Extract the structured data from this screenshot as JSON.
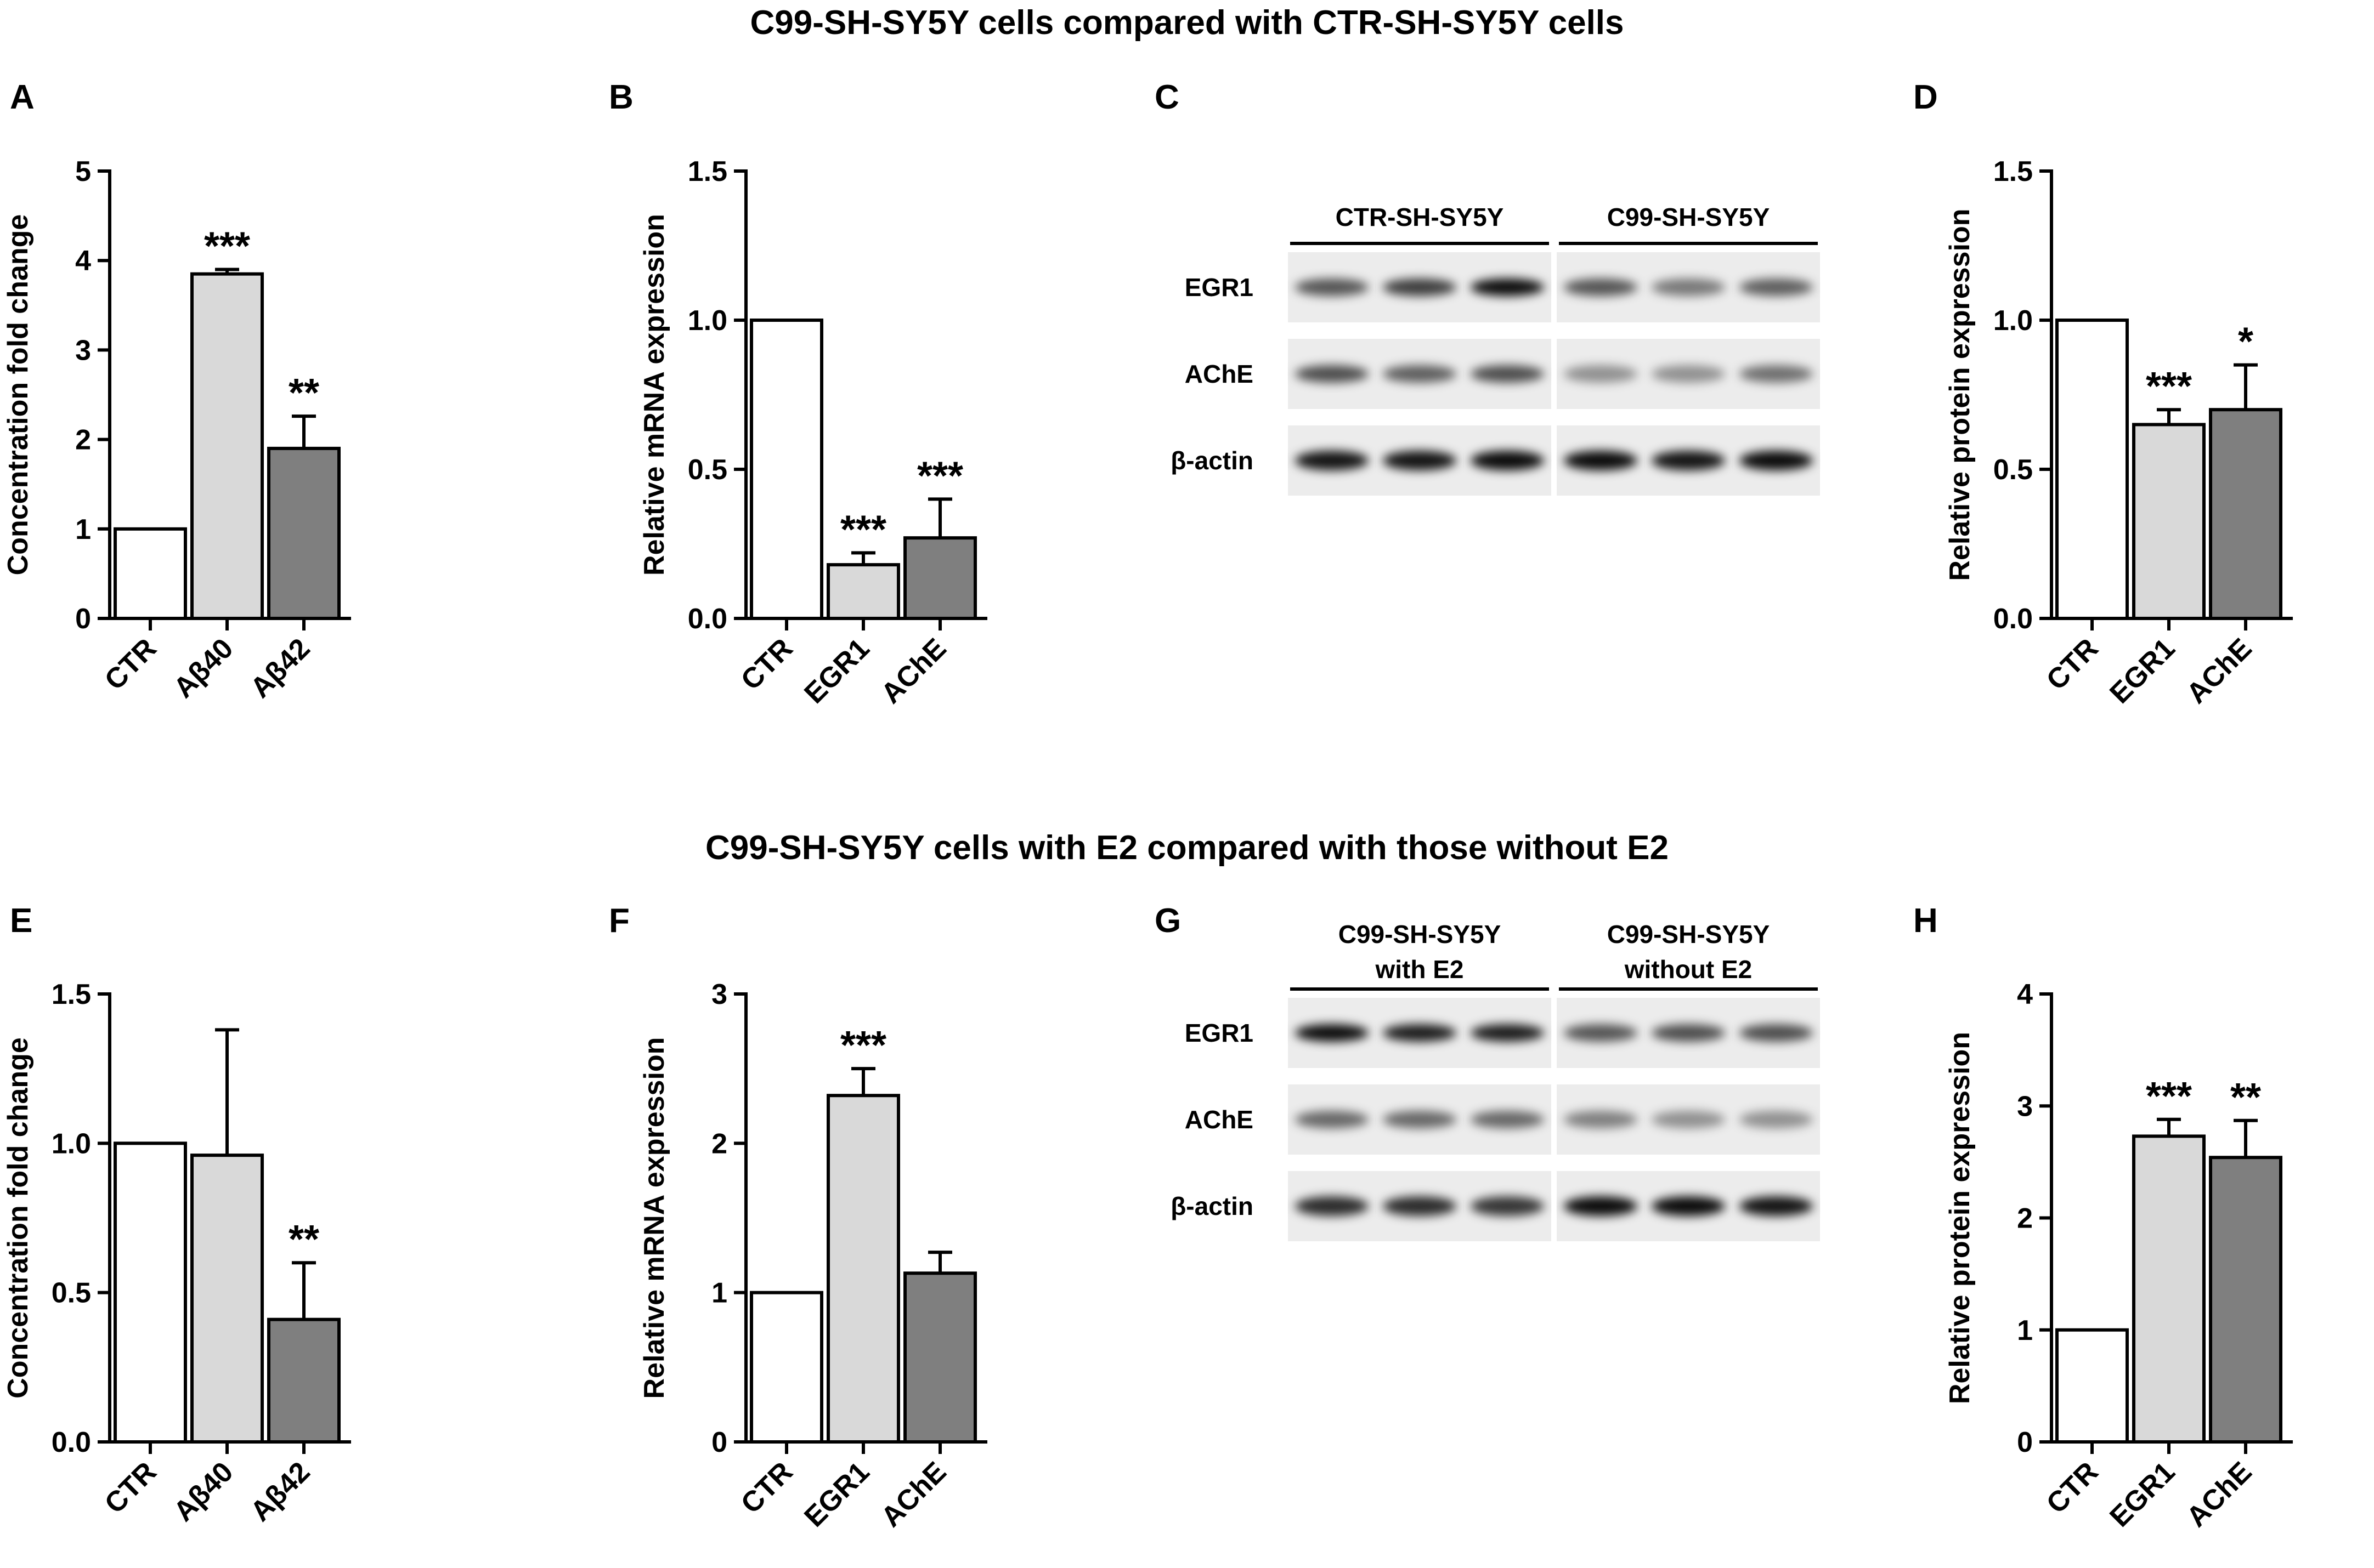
{
  "headings": {
    "top": "C99-SH-SY5Y cells compared with CTR-SH-SY5Y cells",
    "bottom": "C99-SH-SY5Y cells with E2 compared with those without E2"
  },
  "colors": {
    "white_bar": "#ffffff",
    "light_bar": "#d9d9d9",
    "dark_bar": "#7f7f7f",
    "axis": "#000000"
  },
  "chart_data": [
    {
      "panel": "A",
      "type": "bar",
      "categories": [
        "CTR",
        "Aβ40",
        "Aβ42"
      ],
      "values": [
        1.0,
        3.85,
        1.9
      ],
      "errors": [
        0,
        0.05,
        0.36
      ],
      "significance": [
        "",
        "***",
        "**"
      ],
      "ylabel": "Concentration fold change",
      "ylim": [
        0,
        5
      ],
      "yticks": [
        "0",
        "1",
        "2",
        "3",
        "4",
        "5"
      ]
    },
    {
      "panel": "B",
      "type": "bar",
      "categories": [
        "CTR",
        "EGR1",
        "AChE"
      ],
      "values": [
        1.0,
        0.18,
        0.27
      ],
      "errors": [
        0,
        0.04,
        0.13
      ],
      "significance": [
        "",
        "***",
        "***"
      ],
      "ylabel": "Relative mRNA expression",
      "ylim": [
        0,
        1.5
      ],
      "yticks": [
        "0.0",
        "0.5",
        "1.0",
        "1.5"
      ]
    },
    {
      "panel": "D",
      "type": "bar",
      "categories": [
        "CTR",
        "EGR1",
        "AChE"
      ],
      "values": [
        1.0,
        0.65,
        0.7
      ],
      "errors": [
        0,
        0.05,
        0.15
      ],
      "significance": [
        "",
        "***",
        "*"
      ],
      "ylabel": "Relative protein expression",
      "ylim": [
        0,
        1.5
      ],
      "yticks": [
        "0.0",
        "0.5",
        "1.0",
        "1.5"
      ]
    },
    {
      "panel": "E",
      "type": "bar",
      "categories": [
        "CTR",
        "Aβ40",
        "Aβ42"
      ],
      "values": [
        1.0,
        0.96,
        0.41
      ],
      "errors": [
        0,
        0.42,
        0.19
      ],
      "significance": [
        "",
        "",
        "**"
      ],
      "ylabel": "Concentration fold change",
      "ylim": [
        0,
        1.5
      ],
      "yticks": [
        "0.0",
        "0.5",
        "1.0",
        "1.5"
      ]
    },
    {
      "panel": "F",
      "type": "bar",
      "categories": [
        "CTR",
        "EGR1",
        "AChE"
      ],
      "values": [
        1.0,
        2.32,
        1.13
      ],
      "errors": [
        0,
        0.18,
        0.14
      ],
      "significance": [
        "",
        "***",
        ""
      ],
      "ylabel": "Relative mRNA expression",
      "ylim": [
        0,
        3
      ],
      "yticks": [
        "0",
        "1",
        "2",
        "3"
      ]
    },
    {
      "panel": "H",
      "type": "bar",
      "categories": [
        "CTR",
        "EGR1",
        "AChE"
      ],
      "values": [
        1.0,
        2.73,
        2.54
      ],
      "errors": [
        0,
        0.15,
        0.33
      ],
      "significance": [
        "",
        "***",
        "**"
      ],
      "ylabel": "Relative protein expression",
      "ylim": [
        0,
        4
      ],
      "yticks": [
        "0",
        "1",
        "2",
        "3",
        "4"
      ]
    }
  ],
  "blots": [
    {
      "panel": "C",
      "groups": [
        "CTR-SH-SY5Y",
        "C99-SH-SY5Y"
      ],
      "rows": [
        "EGR1",
        "AChE",
        "β-actin"
      ]
    },
    {
      "panel": "G",
      "groups": [
        "C99-SH-SY5Y\nwith E2",
        "C99-SH-SY5Y\nwithout E2"
      ],
      "rows": [
        "EGR1",
        "AChE",
        "β-actin"
      ]
    }
  ]
}
